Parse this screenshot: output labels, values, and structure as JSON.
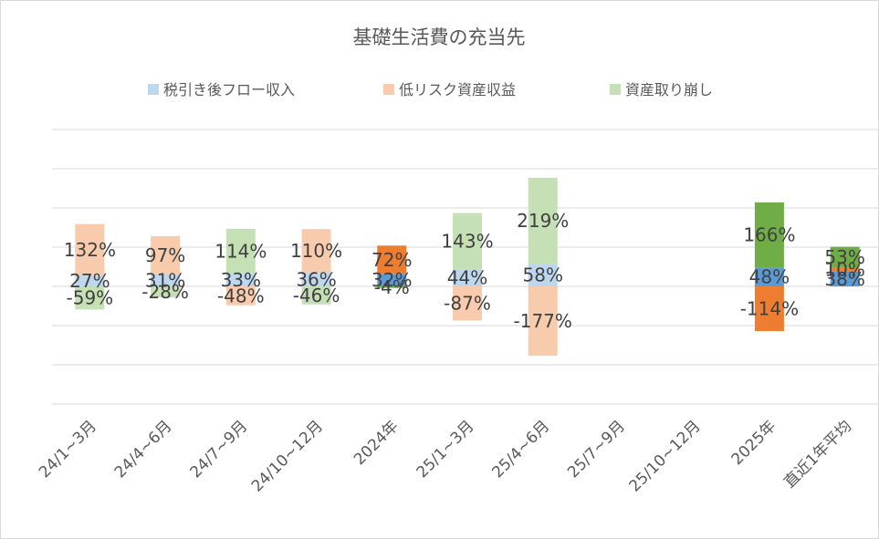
{
  "chart_data": {
    "type": "bar",
    "stacked": true,
    "title": "基礎生活費の充当先",
    "legend_position": "top",
    "grid": true,
    "ylim": [
      -300,
      400
    ],
    "categories": [
      "24/1~3月",
      "24/4~6月",
      "24/7~9月",
      "24/10~12月",
      "2024年",
      "25/1~3月",
      "25/4~6月",
      "25/7~9月",
      "25/10~12月",
      "2025年",
      "直近1年平均"
    ],
    "series": [
      {
        "name": "税引き後フロー収入",
        "values": [
          27,
          31,
          33,
          36,
          32,
          44,
          58,
          null,
          null,
          48,
          38
        ],
        "labels": [
          "27%",
          "31%",
          "33%",
          "36%",
          "32%",
          "44%",
          "58%",
          "",
          "",
          "48%",
          "38%"
        ]
      },
      {
        "name": "低リスク資産収益",
        "values": [
          132,
          97,
          -48,
          110,
          72,
          -87,
          -177,
          null,
          null,
          -114,
          10
        ],
        "labels": [
          "132%",
          "97%",
          "-48%",
          "110%",
          "72%",
          "-87%",
          "-177%",
          "",
          "",
          "-114%",
          "10%"
        ]
      },
      {
        "name": "資産取り崩し",
        "values": [
          -59,
          -28,
          114,
          -46,
          -4,
          143,
          219,
          null,
          null,
          166,
          53
        ],
        "labels": [
          "-59%",
          "-28%",
          "114%",
          "-46%",
          "-4%",
          "143%",
          "219%",
          "",
          "",
          "166%",
          "53%"
        ]
      }
    ],
    "colors": {
      "flow_light": "#bdd7ee",
      "flow_dark": "#5b9bd5",
      "lowrisk_light": "#f8cbad",
      "lowrisk_dark": "#ed7d31",
      "drawdown_light": "#c5e0b4",
      "drawdown_dark": "#70ad47",
      "grid": "#d9d9d9",
      "text": "#404040"
    },
    "emphasized_categories": [
      "2024年",
      "2025年",
      "直近1年平均"
    ]
  }
}
